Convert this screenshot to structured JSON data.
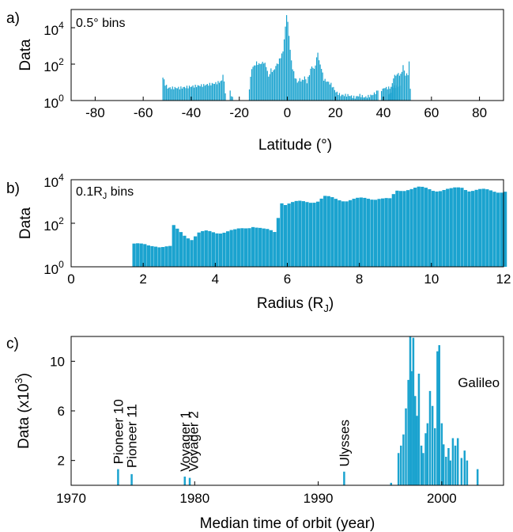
{
  "chart_data": [
    {
      "id": "a",
      "type": "bar",
      "panel_label": "a)",
      "note": "0.5° bins",
      "xlabel": "Latitude (°)",
      "ylabel": "Data",
      "xlim": [
        -90,
        90
      ],
      "ylim": [
        1,
        100000
      ],
      "yscale": "log",
      "xticks": [
        -80,
        -60,
        -40,
        -20,
        0,
        20,
        40,
        60,
        80
      ],
      "yticks": [
        {
          "value": 1,
          "base": "10",
          "exp": "0"
        },
        {
          "value": 100,
          "base": "10",
          "exp": "2"
        },
        {
          "value": 10000,
          "base": "10",
          "exp": "4"
        }
      ],
      "bin_width": 0.5,
      "segments": [
        {
          "x": [
            -52,
            -51,
            -50,
            -45,
            -40,
            -35,
            -30,
            -27.5,
            -27,
            -26
          ],
          "y": [
            20,
            8,
            5,
            5,
            6,
            7,
            9,
            12,
            30,
            3
          ]
        },
        {
          "x": [
            -24,
            -23.5,
            -23
          ],
          "y": [
            3,
            2,
            1.5
          ]
        },
        {
          "x": [
            -16,
            -15,
            -14,
            -13,
            -12,
            -11,
            -10,
            -9,
            -8,
            -7,
            -6,
            -5,
            -4,
            -3,
            -2,
            -1.5,
            -1,
            -0.5,
            0,
            0.5,
            1,
            1.5,
            2,
            3,
            4,
            5,
            6,
            7,
            8,
            9,
            10,
            11,
            12,
            12.5,
            13,
            14,
            15,
            16,
            17,
            18,
            19,
            20,
            22,
            25,
            28,
            30,
            32,
            35,
            37,
            37.5
          ],
          "y": [
            5,
            60,
            80,
            120,
            100,
            110,
            130,
            80,
            20,
            50,
            40,
            80,
            120,
            250,
            500,
            2500,
            10000,
            60000,
            18000,
            4000,
            600,
            150,
            60,
            20,
            10,
            15,
            12,
            20,
            10,
            30,
            80,
            50,
            200,
            500,
            150,
            60,
            15,
            12,
            10,
            8,
            5,
            3,
            2,
            2,
            1.5,
            2,
            1.5,
            2,
            3,
            4
          ]
        },
        {
          "x": [
            39,
            39.5,
            40,
            42,
            45,
            47
          ],
          "y": [
            4,
            4,
            5,
            5,
            6,
            6
          ]
        },
        {
          "x": [
            42,
            43,
            44,
            45,
            46,
            47,
            48,
            49,
            50,
            50.5,
            51
          ],
          "y": [
            2,
            3,
            20,
            25,
            30,
            25,
            80,
            25,
            30,
            120,
            5
          ]
        }
      ]
    },
    {
      "id": "b",
      "type": "bar",
      "panel_label": "b)",
      "note_main": "0.1R",
      "note_sub": "J",
      "note_tail": " bins",
      "xlabel_main": "Radius (R",
      "xlabel_sub": "J",
      "xlabel_tail": ")",
      "ylabel": "Data",
      "xlim": [
        0,
        12
      ],
      "ylim": [
        1,
        10000
      ],
      "yscale": "log",
      "xticks": [
        0,
        2,
        4,
        6,
        8,
        10,
        12
      ],
      "yticks": [
        {
          "value": 1,
          "base": "10",
          "exp": "0"
        },
        {
          "value": 100,
          "base": "10",
          "exp": "2"
        },
        {
          "value": 10000,
          "base": "10",
          "exp": "4"
        }
      ],
      "bin_width": 0.1,
      "x": [
        1.7,
        1.9,
        2.1,
        2.3,
        2.5,
        2.7,
        2.8,
        2.9,
        3.1,
        3.3,
        3.5,
        3.7,
        4.0,
        4.5,
        5.0,
        5.3,
        5.6,
        5.8,
        5.9,
        6.2,
        6.5,
        6.8,
        7.0,
        7.3,
        7.6,
        8.0,
        8.5,
        8.8,
        9.0,
        9.3,
        9.6,
        10.0,
        10.5,
        10.8,
        11.0,
        11.5,
        12.0
      ],
      "y": [
        12,
        10,
        9,
        10,
        9,
        8,
        70,
        50,
        30,
        20,
        35,
        40,
        40,
        45,
        80,
        50,
        40,
        1000,
        800,
        900,
        1000,
        1100,
        1600,
        1300,
        1200,
        1300,
        1500,
        1200,
        3000,
        4000,
        4200,
        3500,
        3500,
        4500,
        3500,
        3200,
        3000
      ]
    },
    {
      "id": "c",
      "type": "bar",
      "panel_label": "c)",
      "xlabel": "Median time of orbit (year)",
      "ylabel_main": "Data (x10",
      "ylabel_sup": "3",
      "ylabel_tail": ")",
      "xlim": [
        1970,
        2005
      ],
      "ylim": [
        0,
        12
      ],
      "xticks": [
        1970,
        1980,
        1990,
        2000
      ],
      "yticks": [
        2,
        6,
        10
      ],
      "spikes": [
        {
          "x": 1973.8,
          "y": 1.3
        },
        {
          "x": 1974.9,
          "y": 0.9
        },
        {
          "x": 1979.2,
          "y": 0.7
        },
        {
          "x": 1979.6,
          "y": 0.6
        },
        {
          "x": 1992.1,
          "y": 1.1
        },
        {
          "x": 1995.9,
          "y": 0.2
        },
        {
          "x": 1996.5,
          "y": 2.6
        },
        {
          "x": 1996.7,
          "y": 3.2
        },
        {
          "x": 1996.9,
          "y": 4.1
        },
        {
          "x": 1997.1,
          "y": 6.2
        },
        {
          "x": 1997.3,
          "y": 8.5
        },
        {
          "x": 1997.45,
          "y": 12.0
        },
        {
          "x": 1997.55,
          "y": 9.2
        },
        {
          "x": 1997.7,
          "y": 11.9
        },
        {
          "x": 1997.85,
          "y": 7.2
        },
        {
          "x": 1998.0,
          "y": 5.6
        },
        {
          "x": 1998.15,
          "y": 9.0
        },
        {
          "x": 1998.35,
          "y": 3.2
        },
        {
          "x": 1998.5,
          "y": 2.6
        },
        {
          "x": 1998.7,
          "y": 4.2
        },
        {
          "x": 1998.85,
          "y": 5.0
        },
        {
          "x": 1999.05,
          "y": 7.6
        },
        {
          "x": 1999.25,
          "y": 6.4
        },
        {
          "x": 1999.45,
          "y": 4.6
        },
        {
          "x": 1999.65,
          "y": 10.8
        },
        {
          "x": 1999.8,
          "y": 11.3
        },
        {
          "x": 2000.0,
          "y": 5.0
        },
        {
          "x": 2000.15,
          "y": 3.3
        },
        {
          "x": 2000.35,
          "y": 2.3
        },
        {
          "x": 2000.55,
          "y": 3.0
        },
        {
          "x": 2000.7,
          "y": 2.0
        },
        {
          "x": 2000.9,
          "y": 3.8
        },
        {
          "x": 2001.1,
          "y": 3.2
        },
        {
          "x": 2001.3,
          "y": 3.8
        },
        {
          "x": 2001.6,
          "y": 2.2
        },
        {
          "x": 2001.85,
          "y": 2.8
        },
        {
          "x": 2002.05,
          "y": 2.0
        },
        {
          "x": 2002.9,
          "y": 1.3
        }
      ],
      "annotations": [
        {
          "text": "Pioneer 10",
          "x": 1973.8,
          "y": 1.7,
          "rotated": true
        },
        {
          "text": "Pioneer 11",
          "x": 1974.9,
          "y": 1.4,
          "rotated": true
        },
        {
          "text": "Voyager 1",
          "x": 1979.2,
          "y": 1.1,
          "rotated": true
        },
        {
          "text": "Voyager 2",
          "x": 1979.9,
          "y": 1.1,
          "rotated": true
        },
        {
          "text": "Ulysses",
          "x": 1992.1,
          "y": 1.5,
          "rotated": true
        },
        {
          "text": "Galileo",
          "x": 2001.3,
          "y": 7.9,
          "rotated": false
        }
      ]
    }
  ]
}
